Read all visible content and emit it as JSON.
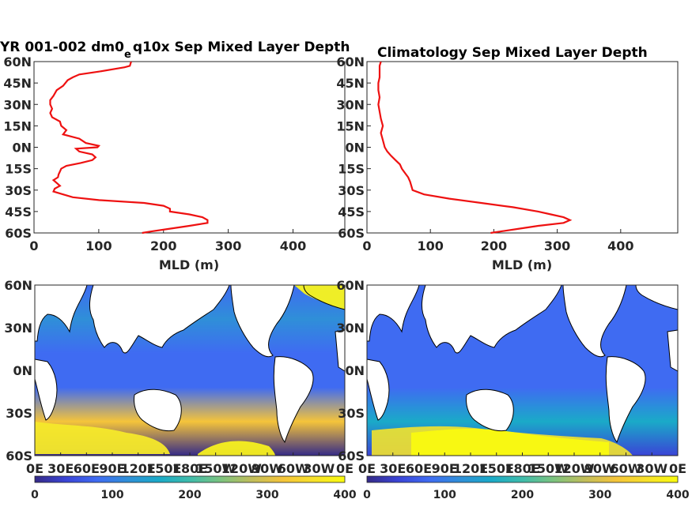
{
  "colors": {
    "profile_line": "#ee1111",
    "colormap": [
      "#352a87",
      "#3a44d6",
      "#3f6bf2",
      "#2f8fd8",
      "#1aaac8",
      "#3fbcab",
      "#7cc37f",
      "#c1be5b",
      "#f5c43a",
      "#f7e12a",
      "#f9fb0e"
    ],
    "land": "#ffffff",
    "coast": "#000000"
  },
  "chart_data": [
    {
      "type": "line",
      "title": "YR 001-002 dm0_e q10x Sep Mixed Layer Depth",
      "title_main": "YR 001-002 dm0",
      "title_sub": "e",
      "title_rest": "q10x Sep Mixed Layer Depth",
      "xlabel": "MLD (m)",
      "ylabel": "",
      "xlim": [
        0,
        480
      ],
      "ylim": [
        -60,
        60
      ],
      "xticks": [
        0,
        100,
        200,
        300,
        400
      ],
      "ytick_labels": [
        "60S",
        "45S",
        "30S",
        "15S",
        "0N",
        "15N",
        "30N",
        "45N",
        "60N"
      ],
      "series": [
        {
          "lat": [
            60,
            57,
            56,
            53,
            51,
            49,
            47,
            43,
            40,
            36,
            33,
            30,
            27,
            24,
            21,
            18,
            15,
            12,
            9,
            6,
            3,
            1,
            0,
            -1,
            -3,
            -5,
            -7,
            -9,
            -11,
            -13,
            -15,
            -17,
            -19,
            -21,
            -23,
            -25,
            -27,
            -29,
            -31,
            -33,
            -35,
            -37,
            -39,
            -41,
            -43,
            -45,
            -47,
            -49,
            -51,
            -53,
            -55,
            -57,
            -59,
            -60
          ],
          "mld": [
            150,
            148,
            140,
            100,
            70,
            60,
            52,
            45,
            35,
            30,
            25,
            25,
            28,
            25,
            28,
            40,
            42,
            50,
            45,
            70,
            80,
            100,
            98,
            65,
            70,
            90,
            95,
            90,
            72,
            50,
            42,
            40,
            38,
            37,
            30,
            35,
            40,
            32,
            30,
            45,
            60,
            100,
            170,
            200,
            210,
            210,
            240,
            260,
            268,
            268,
            240,
            210,
            180,
            167
          ]
        }
      ]
    },
    {
      "type": "line",
      "title": "Climatology Sep Mixed Layer Depth",
      "xlabel": "MLD (m)",
      "ylabel": "",
      "xlim": [
        0,
        490
      ],
      "ylim": [
        -60,
        60
      ],
      "xticks": [
        0,
        100,
        200,
        300,
        400
      ],
      "ytick_labels": [
        "60S",
        "45S",
        "30S",
        "15S",
        "0N",
        "15N",
        "30N",
        "45N",
        "60N"
      ],
      "series": [
        {
          "lat": [
            60,
            57,
            53,
            49,
            45,
            40,
            35,
            30,
            25,
            20,
            15,
            10,
            5,
            0,
            -3,
            -6,
            -9,
            -12,
            -15,
            -18,
            -21,
            -24,
            -27,
            -30,
            -33,
            -36,
            -39,
            -42,
            -45,
            -47,
            -49,
            -51,
            -53,
            -55,
            -57,
            -59,
            -60
          ],
          "mld": [
            22,
            20,
            20,
            20,
            18,
            18,
            20,
            18,
            20,
            22,
            25,
            22,
            25,
            28,
            32,
            38,
            45,
            52,
            55,
            60,
            65,
            68,
            70,
            72,
            90,
            130,
            180,
            230,
            270,
            290,
            310,
            320,
            310,
            270,
            240,
            210,
            195
          ]
        }
      ]
    },
    {
      "type": "heatmap",
      "title": "",
      "xtick_labels": [
        "0E",
        "30E",
        "60E",
        "90E",
        "120E",
        "150E",
        "180E",
        "150W",
        "120W",
        "90W",
        "60W",
        "30W",
        "0E"
      ],
      "ytick_labels": [
        "60S",
        "30S",
        "0N",
        "30N",
        "60N"
      ],
      "colorbar_ticks": [
        0,
        100,
        200,
        300,
        400
      ],
      "clim": [
        0,
        400
      ]
    },
    {
      "type": "heatmap",
      "title": "",
      "xtick_labels": [
        "0E",
        "30E",
        "60E",
        "90E",
        "120E",
        "150E",
        "180E",
        "150W",
        "120W",
        "90W",
        "60W",
        "30W",
        "0E"
      ],
      "ytick_labels": [
        "60S",
        "30S",
        "0N",
        "30N",
        "60N"
      ],
      "colorbar_ticks": [
        0,
        100,
        200,
        300,
        400
      ],
      "clim": [
        0,
        400
      ]
    }
  ]
}
